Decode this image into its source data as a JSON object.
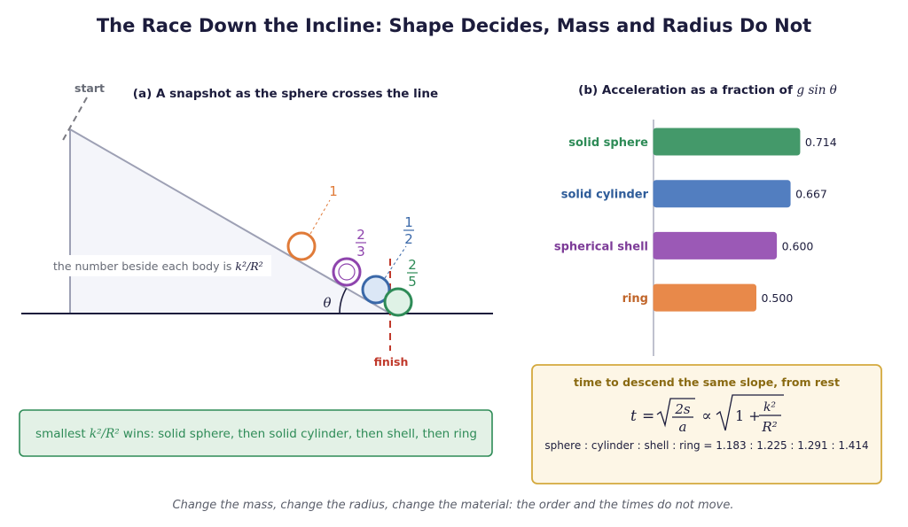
{
  "title": "The Race Down the Incline: Shape Decides, Mass and Radius Do Not",
  "panel_a": {
    "subtitle": "(a) A snapshot as the sphere crosses the line",
    "start_label": "start",
    "finish_label": "finish",
    "angle_label": "θ",
    "note_prefix": "the number beside each body is ",
    "note_math": "k²/R²",
    "bodies": [
      {
        "name": "ring",
        "num": "1",
        "den": "",
        "color": "#e07b39",
        "fill": "#ffffff",
        "hollow": "ring"
      },
      {
        "name": "spherical shell",
        "num": "2",
        "den": "3",
        "color": "#8e44ad",
        "fill": "#ffffff",
        "hollow": "shell"
      },
      {
        "name": "solid cylinder",
        "num": "1",
        "den": "2",
        "color": "#3a68a8",
        "fill": "#dbe7f6",
        "hollow": "solid"
      },
      {
        "name": "solid sphere",
        "num": "2",
        "den": "5",
        "color": "#2e8b57",
        "fill": "#dff2e6",
        "hollow": "solid"
      }
    ],
    "conclusion_prefix": "smallest ",
    "conclusion_math": "k²/R²",
    "conclusion_suffix": " wins: solid sphere, then solid cylinder, then shell, then ring"
  },
  "chart_data": {
    "type": "bar",
    "orientation": "horizontal",
    "title": "(b) Acceleration as a fraction of g sin θ",
    "title_prefix": "(b) Acceleration as a fraction of ",
    "title_math": "g sin θ",
    "categories": [
      "solid sphere",
      "solid cylinder",
      "spherical shell",
      "ring"
    ],
    "values": [
      0.714,
      0.667,
      0.6,
      0.5
    ],
    "value_labels": [
      "0.714",
      "0.667",
      "0.600",
      "0.500"
    ],
    "colors": [
      "#44996a",
      "#527ec0",
      "#9b59b6",
      "#e8894a"
    ],
    "label_colors": [
      "#2e8b57",
      "#2e5c99",
      "#7d3c98",
      "#c0652a"
    ],
    "xlim": [
      0,
      1
    ],
    "grid": false
  },
  "time_box": {
    "title": "time to descend the same slope, from rest",
    "formula_lhs": "t",
    "formula_frac_num": "2s",
    "formula_frac_den": "a",
    "formula_prop": "∝",
    "formula_inner": "1 + k²/R²",
    "ratio_text": "sphere : cylinder : shell : ring  =  1.183 : 1.225 : 1.291 : 1.414"
  },
  "footer": "Change the mass, change the radius, change the material: the order and the times do not move."
}
